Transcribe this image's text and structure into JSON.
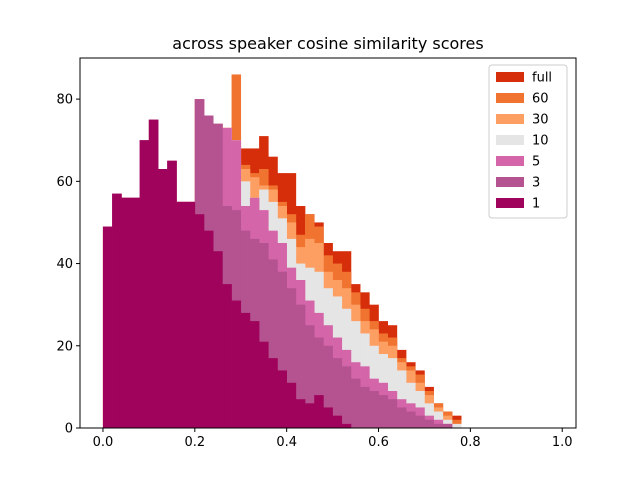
{
  "chart_data": {
    "type": "bar",
    "subtype": "stacked-overlapping-histogram",
    "title": "across speaker cosine similarity scores",
    "xlabel": "",
    "ylabel": "",
    "xlim": [
      -0.05,
      1.03
    ],
    "ylim": [
      0,
      90
    ],
    "xticks": [
      0.0,
      0.2,
      0.4,
      0.6,
      0.8,
      1.0
    ],
    "xtick_labels": [
      "0.0",
      "0.2",
      "0.4",
      "0.6",
      "0.8",
      "1.0"
    ],
    "yticks": [
      0,
      20,
      40,
      60,
      80
    ],
    "ytick_labels": [
      "0",
      "20",
      "40",
      "60",
      "80"
    ],
    "bin_start": 0.0,
    "bin_width": 0.02,
    "legend_position": "top-right",
    "series": [
      {
        "name": "full",
        "color": "#d62d0a",
        "values": [
          49,
          57,
          56,
          56,
          70,
          75,
          63,
          65,
          55,
          55,
          80,
          76,
          74,
          73,
          67,
          68,
          68,
          71,
          66,
          62,
          62,
          54,
          52,
          50,
          45,
          43,
          43,
          35,
          33,
          30,
          26,
          25,
          19,
          16,
          14,
          10,
          6,
          4,
          3,
          0
        ]
      },
      {
        "name": "60",
        "color": "#f07430",
        "values": [
          49,
          57,
          56,
          56,
          70,
          75,
          63,
          65,
          55,
          55,
          80,
          76,
          74,
          73,
          86,
          64,
          62,
          63,
          59,
          55,
          52,
          47,
          52,
          49,
          42,
          40,
          38,
          33,
          29,
          26,
          23,
          22,
          17,
          15,
          13,
          9,
          6,
          4,
          2,
          0
        ]
      },
      {
        "name": "30",
        "color": "#fd9f63",
        "values": [
          49,
          57,
          56,
          56,
          70,
          75,
          63,
          65,
          55,
          55,
          80,
          76,
          74,
          73,
          70,
          63,
          61,
          59,
          58,
          54,
          50,
          44,
          46,
          45,
          38,
          36,
          34,
          30,
          26,
          24,
          21,
          20,
          16,
          14,
          11,
          8,
          5,
          3,
          1,
          0
        ]
      },
      {
        "name": "10",
        "color": "#e6e5e5",
        "values": [
          49,
          57,
          56,
          56,
          70,
          75,
          63,
          65,
          55,
          55,
          80,
          76,
          74,
          73,
          70,
          60,
          56,
          58,
          55,
          51,
          46,
          40,
          39,
          38,
          34,
          32,
          29,
          26,
          23,
          20,
          18,
          17,
          14,
          11,
          9,
          6,
          4,
          2,
          1,
          0
        ]
      },
      {
        "name": "5",
        "color": "#d465a9",
        "values": [
          49,
          57,
          56,
          56,
          70,
          75,
          63,
          65,
          55,
          55,
          80,
          76,
          74,
          73,
          70,
          54,
          56,
          53,
          48,
          45,
          39,
          36,
          31,
          28,
          25,
          22,
          19,
          16,
          15,
          12,
          11,
          9,
          7,
          6,
          5,
          3,
          2,
          1,
          0,
          0
        ]
      },
      {
        "name": "3",
        "color": "#b55290",
        "values": [
          49,
          57,
          56,
          56,
          70,
          75,
          63,
          65,
          55,
          55,
          80,
          76,
          74,
          54,
          53,
          48,
          46,
          45,
          41,
          38,
          34,
          30,
          25,
          22,
          20,
          17,
          15,
          12,
          10,
          9,
          8,
          7,
          5,
          4,
          3,
          2,
          1,
          1,
          0,
          0
        ]
      },
      {
        "name": "1",
        "color": "#a0035c",
        "values": [
          49,
          57,
          56,
          56,
          70,
          75,
          63,
          65,
          55,
          55,
          52,
          48,
          43,
          35,
          31,
          28,
          26,
          21,
          17,
          14,
          11,
          7,
          6,
          8,
          5,
          3,
          1,
          0,
          0,
          0,
          0,
          0,
          0,
          0,
          0,
          0,
          0,
          0,
          0,
          0
        ]
      }
    ]
  }
}
